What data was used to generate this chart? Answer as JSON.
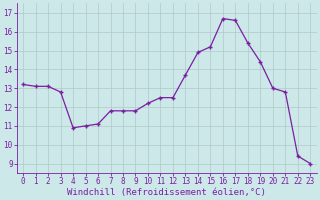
{
  "x": [
    0,
    1,
    2,
    3,
    4,
    5,
    6,
    7,
    8,
    9,
    10,
    11,
    12,
    13,
    14,
    15,
    16,
    17,
    18,
    19,
    20,
    21,
    22,
    23
  ],
  "y": [
    13.2,
    13.1,
    13.1,
    12.8,
    10.9,
    11.0,
    11.1,
    11.8,
    11.8,
    11.8,
    12.2,
    12.5,
    12.5,
    13.7,
    14.9,
    15.2,
    16.7,
    16.6,
    15.4,
    14.4,
    13.0,
    12.8,
    9.4,
    9.0
  ],
  "line_color": "#7b1fa2",
  "bg_color": "#cce8e8",
  "grid_color": "#b0c8c8",
  "xlabel": "Windchill (Refroidissement éolien,°C)",
  "xlim": [
    -0.5,
    23.5
  ],
  "ylim": [
    8.5,
    17.5
  ],
  "xticks": [
    0,
    1,
    2,
    3,
    4,
    5,
    6,
    7,
    8,
    9,
    10,
    11,
    12,
    13,
    14,
    15,
    16,
    17,
    18,
    19,
    20,
    21,
    22,
    23
  ],
  "yticks": [
    9,
    10,
    11,
    12,
    13,
    14,
    15,
    16,
    17
  ],
  "font_color": "#7b1fa2",
  "tick_fontsize": 5.5,
  "xlabel_fontsize": 6.5
}
